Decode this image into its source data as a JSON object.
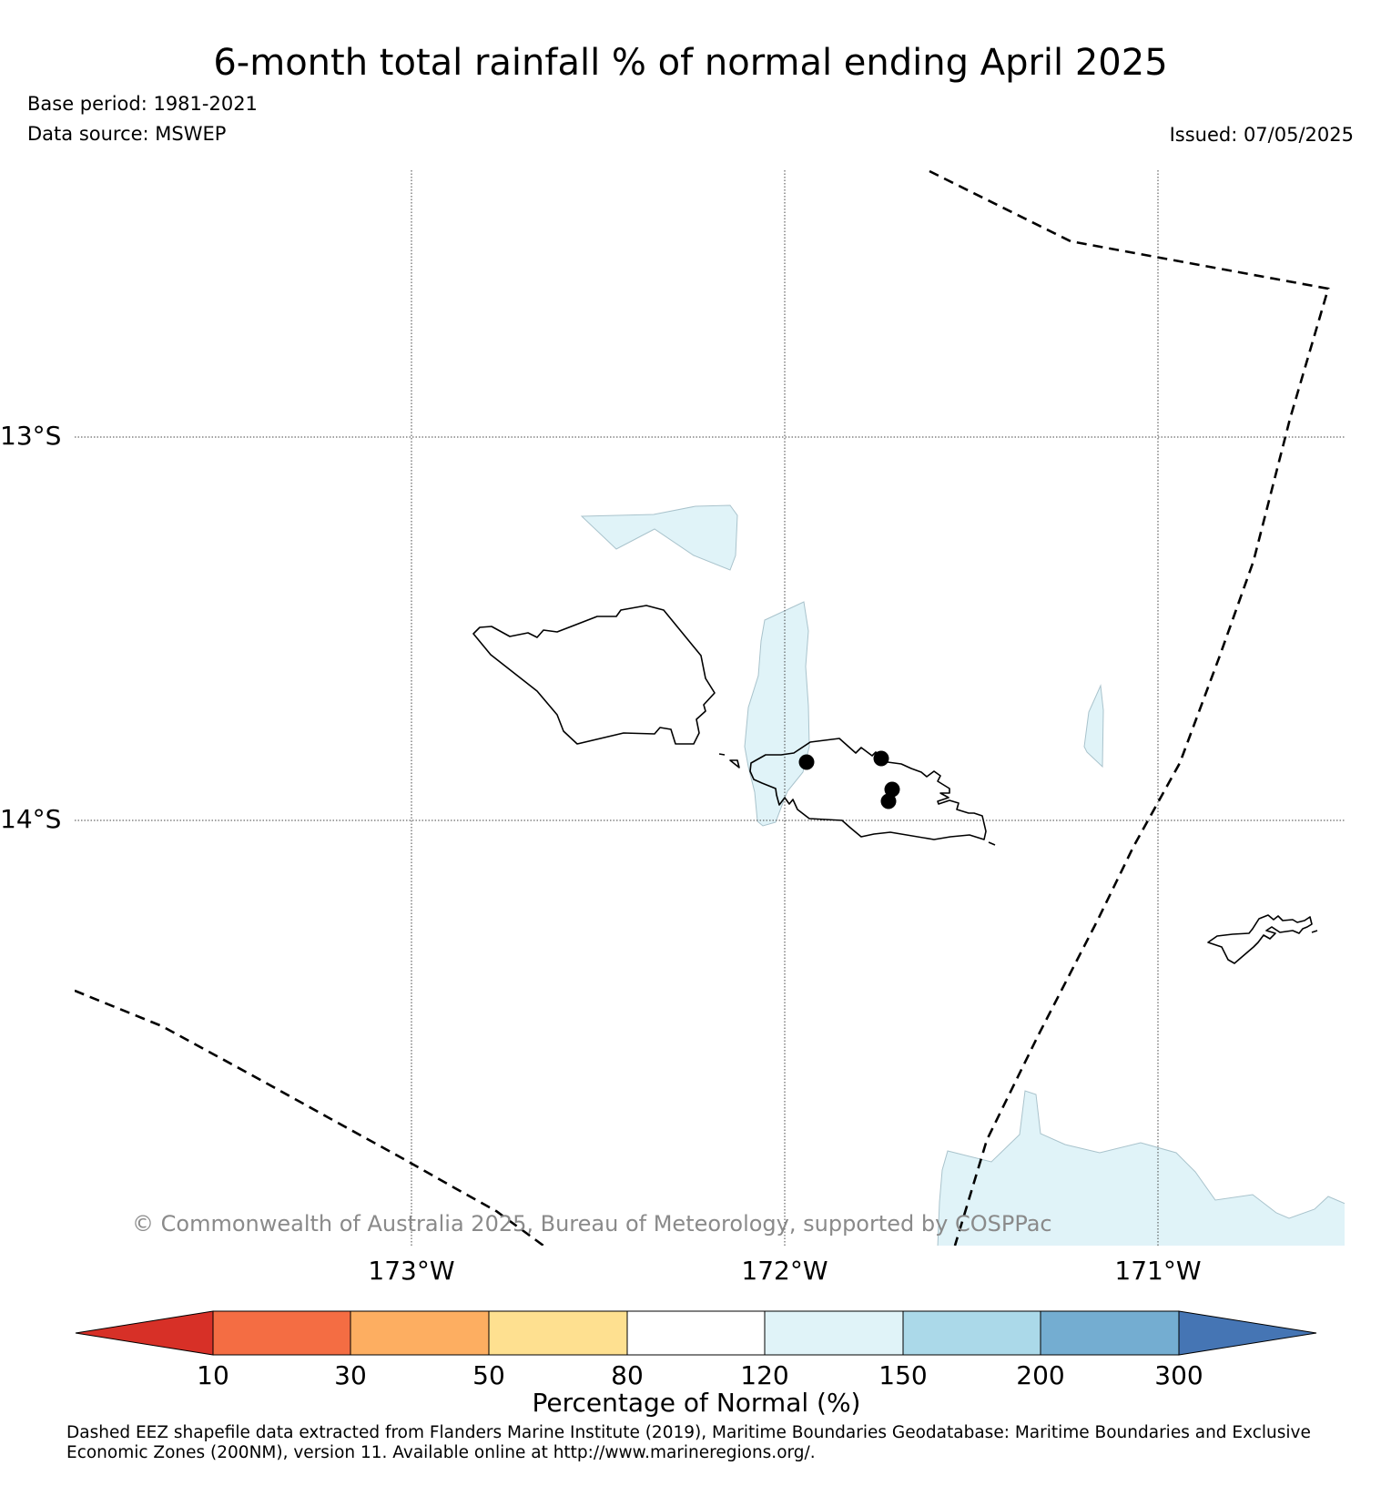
{
  "title": "6-month total rainfall % of normal ending April 2025",
  "base_period": "Base period: 1981-2021",
  "data_source": "Data source: MSWEP",
  "issued": "Issued: 07/05/2025",
  "map": {
    "region": "Samoa",
    "lon_range": [
      -173.9,
      -170.5
    ],
    "lat_range": [
      -12.3,
      -15.1
    ],
    "longitude_labels": [
      "173°W",
      "172°W",
      "171°W"
    ],
    "latitude_labels": [
      "13°S",
      "14°S"
    ],
    "copyright": "© Commonwealth of Australia 2025, Bureau of Meteorology, supported by COSPPac",
    "eez_style": "dashed",
    "stations": 4,
    "shaded_category": "120–150"
  },
  "colorbar": {
    "label": "Percentage of Normal (%)",
    "ticks": [
      "10",
      "30",
      "50",
      "80",
      "120",
      "150",
      "200",
      "300"
    ],
    "colors": [
      "#d73027",
      "#f46d43",
      "#fdae61",
      "#fee090",
      "#ffffff",
      "#e0f3f8",
      "#abd9e9",
      "#74add1",
      "#4575b4"
    ],
    "extend": "both"
  },
  "footnote": "Dashed EEZ shapefile data extracted from Flanders Marine Institute (2019), Maritime Boundaries Geodatabase: Maritime Boundaries and Exclusive Economic Zones (200NM), version 11. Available online at http://www.marineregions.org/."
}
